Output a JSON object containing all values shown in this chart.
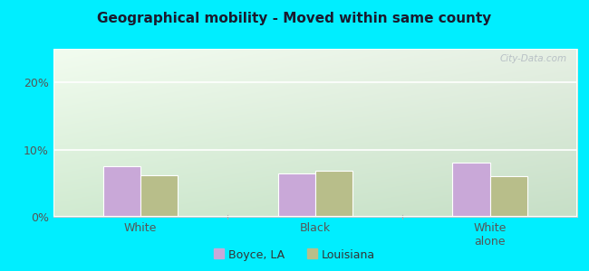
{
  "title": "Geographical mobility - Moved within same county",
  "categories": [
    "White",
    "Black",
    "White\nalone"
  ],
  "boyce_values": [
    7.5,
    6.5,
    8.0
  ],
  "louisiana_values": [
    6.2,
    6.8,
    6.1
  ],
  "boyce_color": "#c9a8d8",
  "louisiana_color": "#b8be8a",
  "bar_width": 0.32,
  "ylim": [
    0,
    25
  ],
  "yticks": [
    0,
    10,
    20
  ],
  "ytick_labels": [
    "0%",
    "10%",
    "20%"
  ],
  "background_color": "#00eeff",
  "title_fontsize": 11,
  "tick_fontsize": 9,
  "legend_labels": [
    "Boyce, LA",
    "Louisiana"
  ],
  "watermark": "City-Data.com"
}
